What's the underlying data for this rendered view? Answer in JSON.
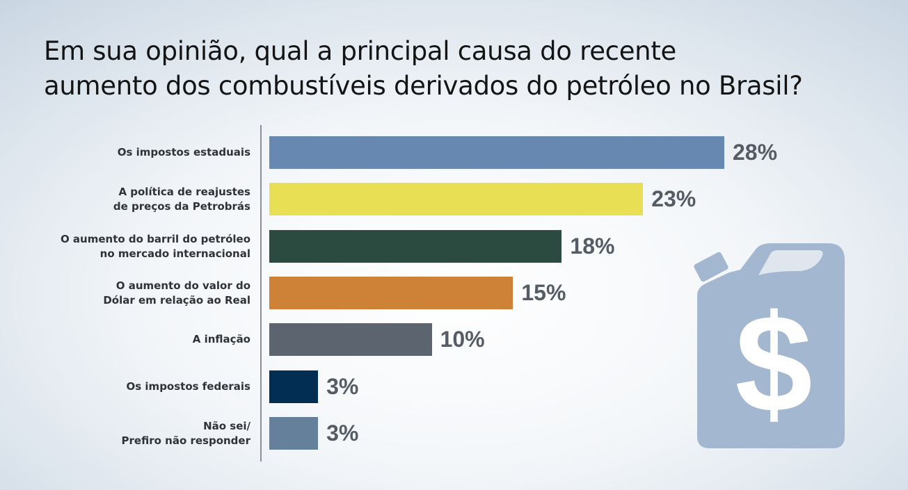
{
  "chart_data": {
    "type": "bar",
    "orientation": "horizontal",
    "title": [
      "Em sua opinião, qual a principal causa do recente",
      "aumento dos combustíveis derivados do petróleo no Brasil?"
    ],
    "categories": [
      [
        "Os impostos estaduais"
      ],
      [
        "A política de reajustes",
        "de preços da Petrobrás"
      ],
      [
        "O aumento do barril do petróleo",
        "no mercado internacional"
      ],
      [
        "O aumento do valor do",
        "Dólar em relação ao Real"
      ],
      [
        "A inflação"
      ],
      [
        "Os impostos federais"
      ],
      [
        "Não sei/",
        "Prefiro não responder"
      ]
    ],
    "values": [
      28,
      23,
      18,
      15,
      10,
      3,
      3
    ],
    "value_labels": [
      "28%",
      "23%",
      "18%",
      "15%",
      "10%",
      "3%",
      "3%"
    ],
    "colors": [
      "#6688b1",
      "#e9df55",
      "#2b4a40",
      "#cd8237",
      "#5c6470",
      "#022e53",
      "#64809a"
    ],
    "unit": "%",
    "xlim": [
      0,
      28
    ],
    "grid": false,
    "legend": "none"
  },
  "decoration": {
    "icon": "fuel-can-dollar-icon",
    "color": "#a3b8d0"
  }
}
